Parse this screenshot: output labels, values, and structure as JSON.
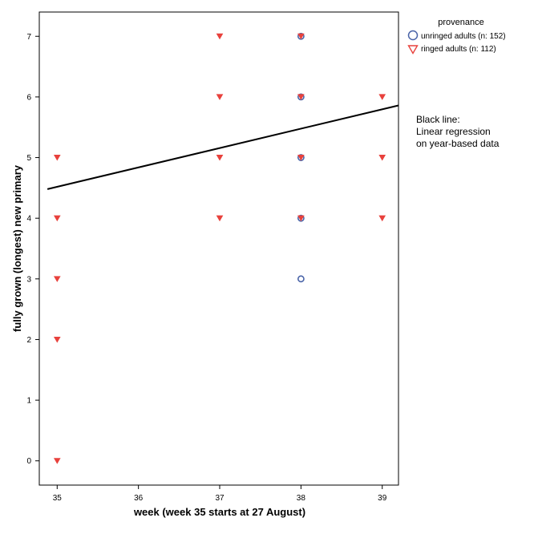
{
  "chart_data": {
    "type": "scatter",
    "xlabel": "week (week 35 starts at 27 August)",
    "ylabel": "fully grown (longest) new primary",
    "xlim": [
      34.78,
      39.2
    ],
    "ylim": [
      -0.4,
      7.4
    ],
    "x_ticks": [
      35,
      36,
      37,
      38,
      39
    ],
    "y_ticks": [
      0,
      1,
      2,
      3,
      4,
      5,
      6,
      7
    ],
    "grid": false,
    "legend": {
      "title": "provenance",
      "placement": "top-right outside plot",
      "entries": [
        {
          "label": "unringed adults (n: 152)",
          "marker": "circle",
          "color": "#4a64a8"
        },
        {
          "label": "ringed adults (n: 112)",
          "marker": "triangle-down",
          "color": "#e8413c"
        }
      ]
    },
    "series": [
      {
        "name": "unringed adults (n: 152)",
        "marker": "circle",
        "color": "#4a64a8",
        "points": [
          {
            "x": 38,
            "y": 3
          },
          {
            "x": 38,
            "y": 4
          },
          {
            "x": 38,
            "y": 5
          },
          {
            "x": 38,
            "y": 6
          },
          {
            "x": 38,
            "y": 7
          }
        ]
      },
      {
        "name": "ringed adults (n: 112)",
        "marker": "triangle-down",
        "color": "#e8413c",
        "points": [
          {
            "x": 35,
            "y": 0
          },
          {
            "x": 35,
            "y": 2
          },
          {
            "x": 35,
            "y": 3
          },
          {
            "x": 35,
            "y": 4
          },
          {
            "x": 35,
            "y": 5
          },
          {
            "x": 37,
            "y": 4
          },
          {
            "x": 37,
            "y": 5
          },
          {
            "x": 37,
            "y": 6
          },
          {
            "x": 37,
            "y": 7
          },
          {
            "x": 38,
            "y": 4
          },
          {
            "x": 38,
            "y": 5
          },
          {
            "x": 38,
            "y": 6
          },
          {
            "x": 38,
            "y": 7
          },
          {
            "x": 39,
            "y": 4
          },
          {
            "x": 39,
            "y": 5
          },
          {
            "x": 39,
            "y": 6
          }
        ]
      }
    ],
    "regression_line": {
      "color": "#000000",
      "x": [
        34.88,
        39.2
      ],
      "y": [
        4.48,
        5.86
      ]
    },
    "annotation": [
      "Black line:",
      "Linear regression",
      "on year-based data"
    ]
  }
}
